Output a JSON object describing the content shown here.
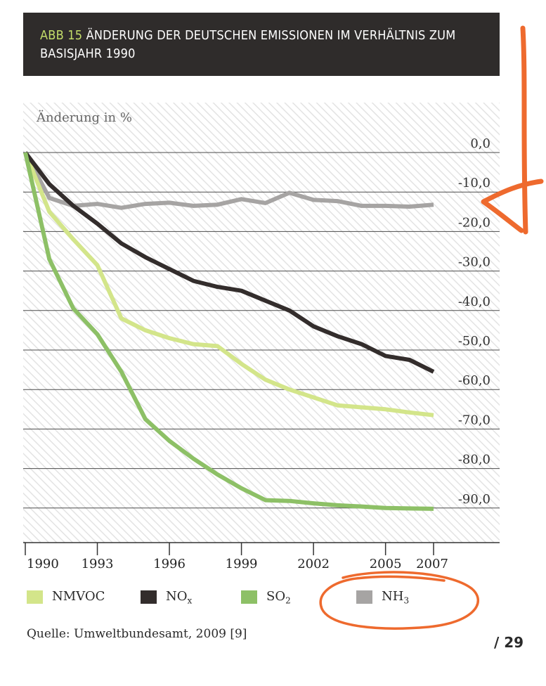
{
  "header": {
    "abb": "ABB 15",
    "title": "ÄNDERUNG DER DEUTSCHEN EMISSIONEN IM VERHÄLTNIS ZUM",
    "title_line2": "BASISJAHR 1990"
  },
  "chart_data": {
    "type": "line",
    "ylabel": "Änderung in %",
    "ylim": [
      -100,
      0
    ],
    "yticks": [
      "0,0",
      "-10,0",
      "-20,0",
      "-30,0",
      "-40,0",
      "-50,0",
      "-60,0",
      "-70,0",
      "-80,0",
      "-90,0"
    ],
    "ytick_values": [
      0,
      -10,
      -20,
      -30,
      -40,
      -50,
      -60,
      -70,
      -80,
      -90
    ],
    "xlim": [
      1990,
      2007
    ],
    "xticks": [
      "1990",
      "1993",
      "1996",
      "1999",
      "2002",
      "2005",
      "2007"
    ],
    "xtick_values": [
      1990,
      1993,
      1996,
      1999,
      2002,
      2005,
      2007
    ],
    "grid": true,
    "background": "diagonal-hatch",
    "x": [
      1990,
      1991,
      1992,
      1993,
      1994,
      1995,
      1996,
      1997,
      1998,
      1999,
      2000,
      2001,
      2002,
      2003,
      2004,
      2005,
      2006,
      2007
    ],
    "series": [
      {
        "name": "NMVOC",
        "color": "#d3e58a",
        "values": [
          0,
          -15,
          -22,
          -28.5,
          -42,
          -45,
          -47,
          -48.5,
          -49,
          -53.5,
          -57.5,
          -60,
          -62,
          -64,
          -64.5,
          -65,
          -65.8,
          -66.5
        ]
      },
      {
        "name": "NOx",
        "color": "#332d2c",
        "values": [
          0,
          -8,
          -13.5,
          -18,
          -23,
          -26.5,
          -29.5,
          -32.5,
          -34,
          -35,
          -37.5,
          -40,
          -44,
          -46.5,
          -48.5,
          -51.5,
          -52.5,
          -55.5
        ]
      },
      {
        "name": "SO2",
        "color": "#8dc066",
        "values": [
          0,
          -27,
          -39.5,
          -46,
          -55.5,
          -67.5,
          -73,
          -77.5,
          -81.5,
          -85,
          -88,
          -88.2,
          -88.8,
          -89.3,
          -89.6,
          -90,
          -90.1,
          -90.2
        ]
      },
      {
        "name": "NH3",
        "color": "#a6a4a3",
        "values": [
          0,
          -11.5,
          -13.5,
          -13,
          -14,
          -13,
          -12.7,
          -13.5,
          -13.2,
          -11.8,
          -12.8,
          -10.2,
          -12,
          -12.3,
          -13.5,
          -13.5,
          -13.7,
          -13.2
        ]
      }
    ]
  },
  "legend": [
    {
      "label": "NMVOC",
      "sub": "",
      "color": "#d3e58a"
    },
    {
      "label": "NO",
      "sub": "x",
      "color": "#332d2c"
    },
    {
      "label": "SO",
      "sub": "2",
      "color": "#8dc066"
    },
    {
      "label": "NH",
      "sub": "3",
      "color": "#a6a4a3"
    }
  ],
  "source": "Quelle: Umweltbundesamt, 2009 [9]",
  "page_number": "/ 29",
  "annotations": {
    "arrow_color": "#ee6a2e",
    "circle_color": "#ee6a2e"
  }
}
